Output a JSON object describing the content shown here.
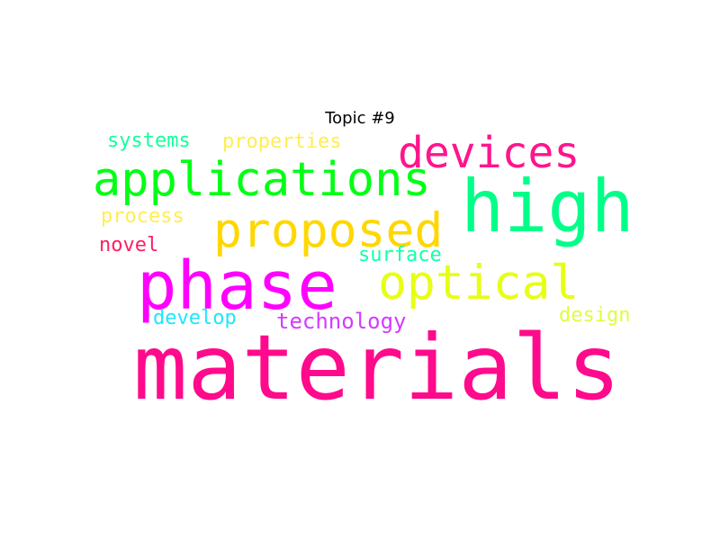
{
  "title": "Topic #9",
  "words": [
    {
      "text": "materials",
      "color": "#ff0a8c"
    },
    {
      "text": "phase",
      "color": "#ff00ff"
    },
    {
      "text": "high",
      "color": "#00ff88"
    },
    {
      "text": "applications",
      "color": "#00ff14"
    },
    {
      "text": "devices",
      "color": "#ff148c"
    },
    {
      "text": "proposed",
      "color": "#ffd700"
    },
    {
      "text": "optical",
      "color": "#e6ff14"
    },
    {
      "text": "systems",
      "color": "#14ff9a"
    },
    {
      "text": "properties",
      "color": "#ffee50"
    },
    {
      "text": "process",
      "color": "#ffee50"
    },
    {
      "text": "novel",
      "color": "#ff1e64"
    },
    {
      "text": "surface",
      "color": "#14ffaa"
    },
    {
      "text": "develop",
      "color": "#1ee6ff"
    },
    {
      "text": "technology",
      "color": "#d23cff"
    },
    {
      "text": "design",
      "color": "#ddff3c"
    }
  ]
}
